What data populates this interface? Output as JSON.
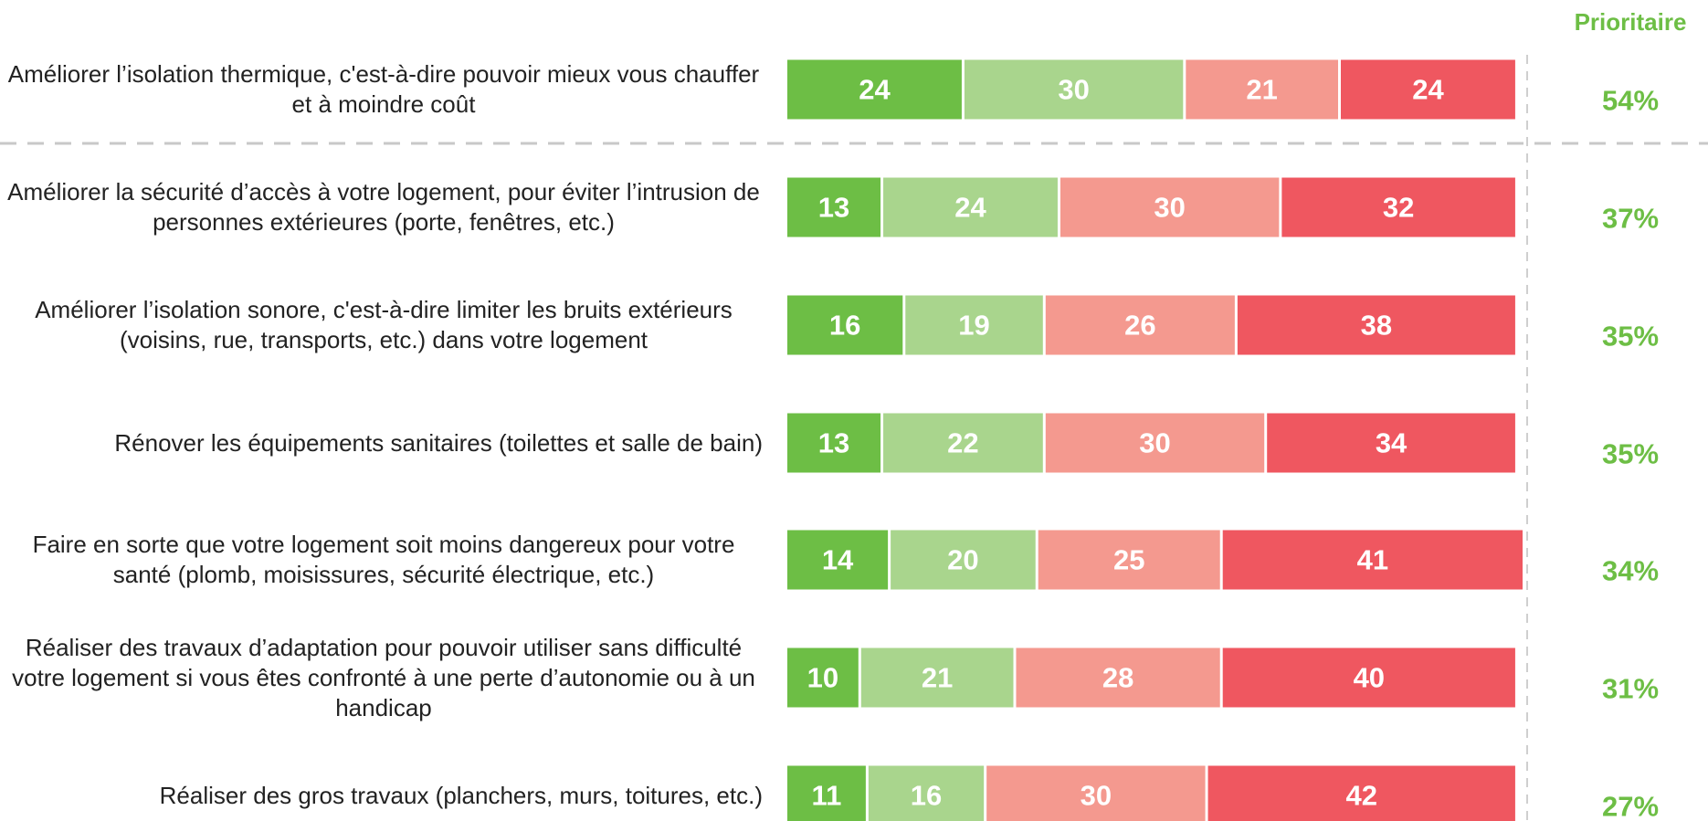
{
  "chart_data": {
    "type": "stacked_bar_horizontal",
    "categories": [
      "Améliorer l’isolation thermique, c'est-à-dire pouvoir mieux vous chauffer et à moindre coût",
      "Améliorer la sécurité d’accès à votre logement, pour éviter l’intrusion de personnes extérieures (porte, fenêtres, etc.)",
      "Améliorer l’isolation sonore, c'est-à-dire limiter les bruits extérieurs (voisins, rue, transports, etc.) dans votre logement",
      "Rénover les équipements sanitaires (toilettes et salle de bain)",
      "Faire en sorte que votre logement soit moins dangereux pour votre santé (plomb, moisissures, sécurité électrique, etc.)",
      "Réaliser des travaux d’adaptation pour pouvoir utiliser sans difficulté votre logement si vous êtes confronté à une perte d’autonomie ou à un handicap",
      "Réaliser des gros travaux (planchers, murs, toitures, etc.)"
    ],
    "series": [
      {
        "color": "#6dbe45",
        "values": [
          24,
          13,
          16,
          13,
          14,
          10,
          11
        ]
      },
      {
        "color": "#a9d58d",
        "values": [
          30,
          24,
          19,
          22,
          20,
          21,
          16
        ]
      },
      {
        "color": "#f4998f",
        "values": [
          21,
          30,
          26,
          30,
          25,
          28,
          30
        ]
      },
      {
        "color": "#ef5760",
        "values": [
          24,
          32,
          38,
          34,
          41,
          40,
          42
        ]
      }
    ],
    "xlim": [
      0,
      100
    ],
    "priority": {
      "title": "Prioritaire",
      "color": "#6dbe45",
      "values": [
        54,
        37,
        35,
        35,
        34,
        31,
        27
      ],
      "value_labels": [
        "54%",
        "37%",
        "35%",
        "35%",
        "34%",
        "31%",
        "27%"
      ]
    }
  }
}
